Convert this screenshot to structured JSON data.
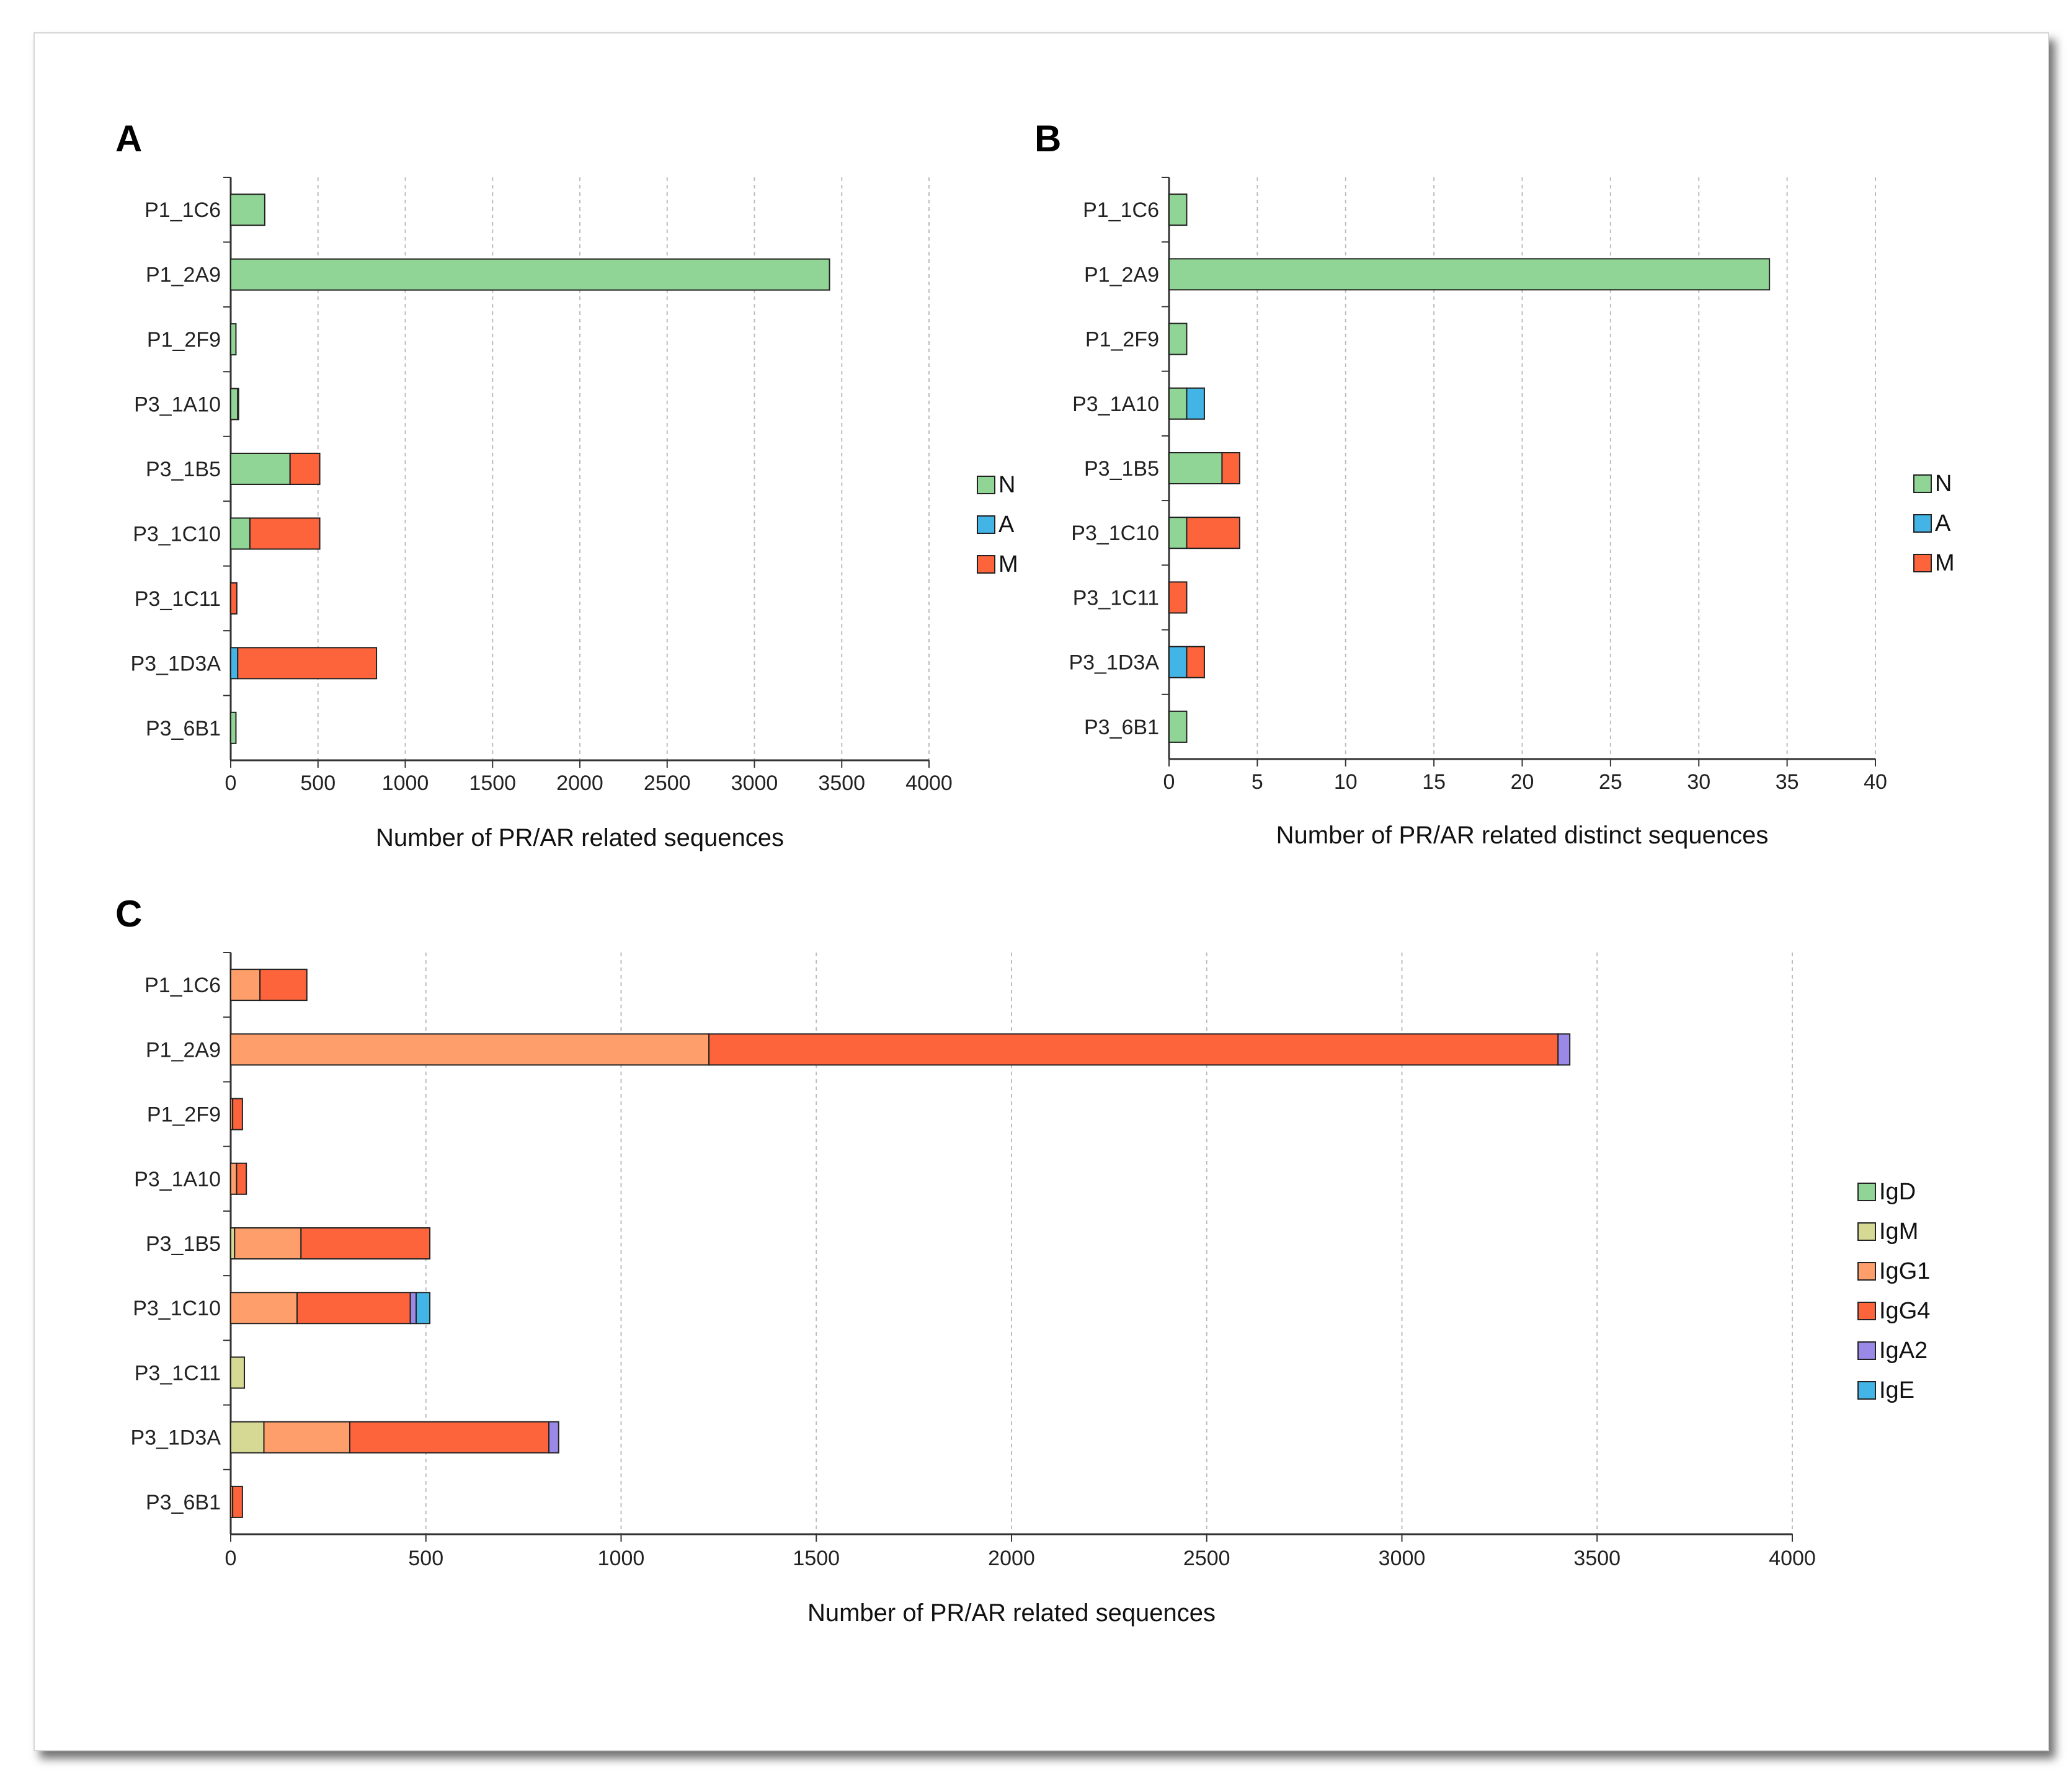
{
  "colors": {
    "N": "#90d596",
    "A": "#43b4e6",
    "M": "#fd643c",
    "IgD": "#90d596",
    "IgM": "#d6d993",
    "IgG1": "#fd9e6b",
    "IgG4": "#fd643c",
    "IgA2": "#9b89e7",
    "IgE": "#43b4e6",
    "axis": "#333333",
    "grid": "#bdbdbd",
    "bar_outline": "#222222"
  },
  "chart_data": [
    {
      "panel": "A",
      "type": "bar",
      "orientation": "horizontal",
      "stacked": true,
      "categories": [
        "P1_1C6",
        "P1_2A9",
        "P1_2F9",
        "P3_1A10",
        "P3_1B5",
        "P3_1C10",
        "P3_1C11",
        "P3_1D3A",
        "P3_6B1"
      ],
      "series": [
        {
          "name": "N",
          "color_key": "N",
          "values": [
            195,
            3430,
            30,
            40,
            340,
            110,
            0,
            0,
            30
          ]
        },
        {
          "name": "A",
          "color_key": "A",
          "values": [
            0,
            0,
            0,
            0,
            0,
            0,
            0,
            40,
            0
          ]
        },
        {
          "name": "M",
          "color_key": "M",
          "values": [
            0,
            0,
            0,
            5,
            170,
            400,
            35,
            795,
            0
          ]
        }
      ],
      "xlim": [
        0,
        4000
      ],
      "xticks": [
        "0",
        "500",
        "1000",
        "1500",
        "2000",
        "2500",
        "3000",
        "3500",
        "4000"
      ],
      "xlabel": "Number of PR/AR related sequences",
      "grid": "vertical dashed",
      "legend": [
        "N",
        "A",
        "M"
      ],
      "legend_placement": "right"
    },
    {
      "panel": "B",
      "type": "bar",
      "orientation": "horizontal",
      "stacked": true,
      "categories": [
        "P1_1C6",
        "P1_2A9",
        "P1_2F9",
        "P3_1A10",
        "P3_1B5",
        "P3_1C10",
        "P3_1C11",
        "P3_1D3A",
        "P3_6B1"
      ],
      "series": [
        {
          "name": "N",
          "color_key": "N",
          "values": [
            1,
            34,
            1,
            1,
            3,
            1,
            0,
            0,
            1
          ]
        },
        {
          "name": "A",
          "color_key": "A",
          "values": [
            0,
            0,
            0,
            1,
            0,
            0,
            0,
            1,
            0
          ]
        },
        {
          "name": "M",
          "color_key": "M",
          "values": [
            0,
            0,
            0,
            0,
            1,
            3,
            1,
            1,
            0
          ]
        }
      ],
      "xlim": [
        0,
        40
      ],
      "xticks": [
        "0",
        "5",
        "10",
        "15",
        "20",
        "25",
        "30",
        "35",
        "40"
      ],
      "xlabel": "Number of PR/AR related distinct sequences",
      "grid": "vertical dashed",
      "legend": [
        "N",
        "A",
        "M"
      ],
      "legend_placement": "right"
    },
    {
      "panel": "C",
      "type": "bar",
      "orientation": "horizontal",
      "stacked": true,
      "categories": [
        "P1_1C6",
        "P1_2A9",
        "P1_2F9",
        "P3_1A10",
        "P3_1B5",
        "P3_1C10",
        "P3_1C11",
        "P3_1D3A",
        "P3_6B1"
      ],
      "series": [
        {
          "name": "IgD",
          "color_key": "IgD",
          "values": [
            0,
            0,
            0,
            0,
            0,
            0,
            0,
            0,
            0
          ]
        },
        {
          "name": "IgM",
          "color_key": "IgM",
          "values": [
            0,
            0,
            0,
            0,
            10,
            0,
            35,
            85,
            0
          ]
        },
        {
          "name": "IgG1",
          "color_key": "IgG1",
          "values": [
            75,
            1225,
            5,
            15,
            170,
            170,
            0,
            220,
            5
          ]
        },
        {
          "name": "IgG4",
          "color_key": "IgG4",
          "values": [
            120,
            2175,
            25,
            25,
            330,
            290,
            0,
            510,
            25
          ]
        },
        {
          "name": "IgA2",
          "color_key": "IgA2",
          "values": [
            0,
            30,
            0,
            0,
            0,
            15,
            0,
            25,
            0
          ]
        },
        {
          "name": "IgE",
          "color_key": "IgE",
          "values": [
            0,
            0,
            0,
            0,
            0,
            35,
            0,
            0,
            0
          ]
        }
      ],
      "xlim": [
        0,
        4000
      ],
      "xticks": [
        "0",
        "500",
        "1000",
        "1500",
        "2000",
        "2500",
        "3000",
        "3500",
        "4000"
      ],
      "xlabel": "Number of PR/AR related sequences",
      "grid": "vertical dashed",
      "legend": [
        "IgD",
        "IgM",
        "IgG1",
        "IgG4",
        "IgA2",
        "IgE"
      ],
      "legend_placement": "right"
    }
  ]
}
